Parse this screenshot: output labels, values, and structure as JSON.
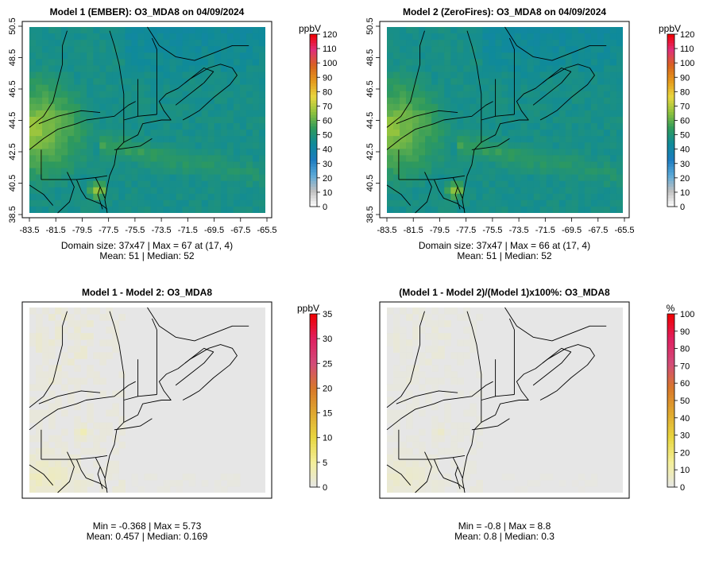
{
  "colors": {
    "land_outline": "#000000",
    "frame": "#000000",
    "diff_background": "#e6e6e6"
  },
  "chart_data": [
    {
      "type": "heatmap",
      "title": "Model 1 (EMBER): O3_MDA8 on 04/09/2024",
      "variable": "O3_MDA8",
      "date": "04/09/2024",
      "units": "ppbV",
      "grid": "37x47",
      "xlabels": [
        "-83.5",
        "-81.5",
        "-79.5",
        "-77.5",
        "-75.5",
        "-73.5",
        "-71.5",
        "-69.5",
        "-67.5",
        "-65.5"
      ],
      "ylabels": [
        "38.5",
        "40.5",
        "42.5",
        "44.5",
        "46.5",
        "48.5",
        "50.5"
      ],
      "colorbar": {
        "min": 0,
        "max": 120,
        "ticks": [
          "0",
          "10",
          "20",
          "30",
          "40",
          "50",
          "60",
          "70",
          "80",
          "90",
          "100",
          "110",
          "120"
        ],
        "stops": [
          "#ffffff",
          "#c0c0c0",
          "#5ba9d8",
          "#1c7cc0",
          "#0f8a9a",
          "#2f9a5c",
          "#8ec23e",
          "#e8d640",
          "#e59a1c",
          "#d8641e",
          "#e0307a",
          "#f00000"
        ]
      },
      "stats_line1": "Domain size: 37x47 | Max = 67 at (17, 4)",
      "stats_line2": "Mean: 51 |  Median: 52",
      "approx_field": {
        "low": 42,
        "high": 67,
        "sea": 47,
        "ohio_valley": 63,
        "hotspot": 67
      }
    },
    {
      "type": "heatmap",
      "title": "Model 2 (ZeroFires): O3_MDA8 on 04/09/2024",
      "variable": "O3_MDA8",
      "date": "04/09/2024",
      "units": "ppbV",
      "grid": "37x47",
      "xlabels": [
        "-83.5",
        "-81.5",
        "-79.5",
        "-77.5",
        "-75.5",
        "-73.5",
        "-71.5",
        "-69.5",
        "-67.5",
        "-65.5"
      ],
      "ylabels": [
        "38.5",
        "40.5",
        "42.5",
        "44.5",
        "46.5",
        "48.5",
        "50.5"
      ],
      "colorbar": {
        "min": 0,
        "max": 120,
        "ticks": [
          "0",
          "10",
          "20",
          "30",
          "40",
          "50",
          "60",
          "70",
          "80",
          "90",
          "100",
          "110",
          "120"
        ],
        "stops": [
          "#ffffff",
          "#c0c0c0",
          "#5ba9d8",
          "#1c7cc0",
          "#0f8a9a",
          "#2f9a5c",
          "#8ec23e",
          "#e8d640",
          "#e59a1c",
          "#d8641e",
          "#e0307a",
          "#f00000"
        ]
      },
      "stats_line1": "Domain size: 37x47 | Max = 66 at (17, 4)",
      "stats_line2": "Mean: 51 |  Median: 52",
      "approx_field": {
        "low": 42,
        "high": 66,
        "sea": 47,
        "ohio_valley": 62,
        "hotspot": 66
      }
    },
    {
      "type": "heatmap",
      "title": "Model 1 - Model 2: O3_MDA8",
      "variable": "O3_MDA8",
      "units": "ppbV",
      "colorbar": {
        "min": 0,
        "max": 35,
        "ticks": [
          "0",
          "5",
          "10",
          "15",
          "20",
          "25",
          "30",
          "35"
        ],
        "stops": [
          "#e6e6e6",
          "#f4ef9a",
          "#e8d640",
          "#e0a830",
          "#d8782a",
          "#d24c7a",
          "#e02060",
          "#f00000"
        ]
      },
      "stats_line1": "Min = -0.368 | Max = 5.73",
      "stats_line2": "Mean: 0.457 |  Median: 0.169",
      "approx_field": {
        "background": 0.0,
        "southwest": 1.5,
        "hotspot": 5.73
      }
    },
    {
      "type": "heatmap",
      "title": "(Model 1 - Model 2)/(Model 1)x100%: O3_MDA8",
      "variable": "O3_MDA8",
      "units": "%",
      "colorbar": {
        "min": 0,
        "max": 100,
        "ticks": [
          "0",
          "10",
          "20",
          "30",
          "40",
          "50",
          "60",
          "70",
          "80",
          "90",
          "100"
        ],
        "stops": [
          "#e6e6e6",
          "#f4ef9a",
          "#e8d640",
          "#e0a830",
          "#d8782a",
          "#d24c7a",
          "#e02060",
          "#f00000"
        ]
      },
      "stats_line1": "Min = -0.8 | Max = 8.8",
      "stats_line2": "Mean: 0.8 |  Median: 0.3",
      "approx_field": {
        "background": 0.0,
        "southwest": 3.0,
        "hotspot": 8.8
      }
    }
  ]
}
